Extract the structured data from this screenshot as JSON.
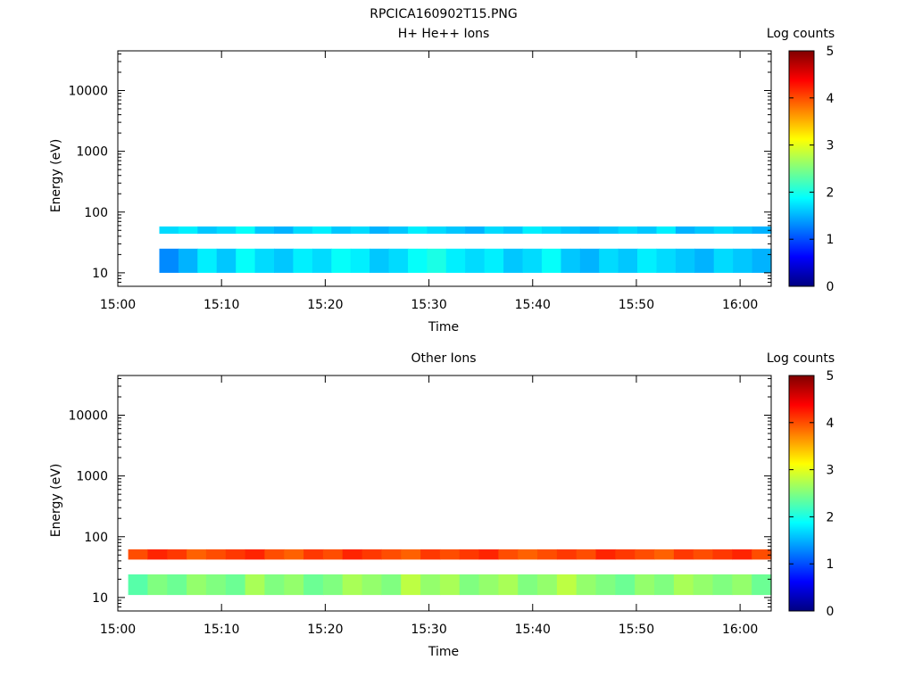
{
  "page_title": "RPCICA160902T15.PNG",
  "colorbar": {
    "ticks": [
      "0",
      "1",
      "2",
      "3",
      "4",
      "5"
    ],
    "colormap": [
      "#000080",
      "#0000ff",
      "#0080ff",
      "#00ffff",
      "#80ff80",
      "#ffff00",
      "#ff8000",
      "#ff0000",
      "#800000"
    ]
  },
  "chart_data": [
    {
      "type": "heatmap",
      "title": "H+ He++ Ions",
      "xlabel": "Time",
      "ylabel": "Energy (eV)",
      "colorbar_label": "Log counts",
      "y_scale": "log",
      "ylim": [
        6,
        45000
      ],
      "xlim": [
        "15:00",
        "16:03"
      ],
      "xticks": [
        "15:00",
        "15:10",
        "15:20",
        "15:30",
        "15:40",
        "15:50",
        "16:00"
      ],
      "yticks": [
        "10",
        "100",
        "1000",
        "10000"
      ],
      "clim": [
        0,
        5
      ],
      "data_start": "15:04",
      "bands": [
        {
          "energy_low_eV": 44,
          "energy_high_eV": 58,
          "log_counts": [
            1.7,
            1.8,
            1.6,
            1.7,
            1.9,
            1.6,
            1.5,
            1.7,
            1.8,
            1.6,
            1.7,
            1.5,
            1.6,
            1.8,
            1.7,
            1.6,
            1.5,
            1.7,
            1.6,
            1.8,
            1.7,
            1.6,
            1.5,
            1.6,
            1.7,
            1.6,
            1.8,
            1.5,
            1.6,
            1.7,
            1.6,
            1.5
          ]
        },
        {
          "energy_low_eV": 10,
          "energy_high_eV": 25,
          "log_counts": [
            1.3,
            1.5,
            1.8,
            1.6,
            1.9,
            1.7,
            1.6,
            1.8,
            1.7,
            1.9,
            1.8,
            1.6,
            1.7,
            1.9,
            2.0,
            1.8,
            1.7,
            1.8,
            1.6,
            1.7,
            1.9,
            1.6,
            1.5,
            1.7,
            1.6,
            1.8,
            1.7,
            1.6,
            1.5,
            1.7,
            1.6,
            1.5
          ]
        }
      ]
    },
    {
      "type": "heatmap",
      "title": "Other Ions",
      "xlabel": "Time",
      "ylabel": "Energy (eV)",
      "colorbar_label": "Log counts",
      "y_scale": "log",
      "ylim": [
        6,
        45000
      ],
      "xlim": [
        "15:00",
        "16:03"
      ],
      "xticks": [
        "15:00",
        "15:10",
        "15:20",
        "15:30",
        "15:40",
        "15:50",
        "16:00"
      ],
      "yticks": [
        "10",
        "100",
        "1000",
        "10000"
      ],
      "clim": [
        0,
        5
      ],
      "data_start": "15:01",
      "bands": [
        {
          "energy_low_eV": 42,
          "energy_high_eV": 62,
          "log_counts": [
            4.0,
            4.2,
            4.1,
            3.9,
            4.0,
            4.1,
            4.2,
            4.0,
            3.9,
            4.1,
            4.0,
            4.2,
            4.1,
            4.0,
            3.9,
            4.1,
            4.0,
            4.1,
            4.2,
            4.0,
            3.9,
            4.0,
            4.1,
            4.0,
            4.2,
            4.1,
            4.0,
            3.9,
            4.1,
            4.0,
            4.1,
            4.2,
            4.0
          ]
        },
        {
          "energy_low_eV": 11,
          "energy_high_eV": 24,
          "log_counts": [
            2.3,
            2.5,
            2.4,
            2.6,
            2.5,
            2.4,
            2.7,
            2.5,
            2.6,
            2.4,
            2.5,
            2.7,
            2.6,
            2.5,
            2.8,
            2.6,
            2.7,
            2.5,
            2.6,
            2.7,
            2.5,
            2.6,
            2.8,
            2.6,
            2.5,
            2.4,
            2.6,
            2.5,
            2.7,
            2.6,
            2.5,
            2.6,
            2.4
          ]
        }
      ]
    }
  ]
}
